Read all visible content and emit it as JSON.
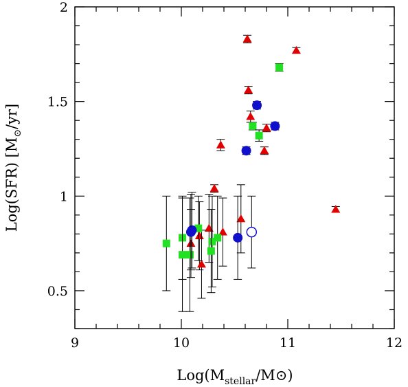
{
  "chart_data": {
    "type": "scatter",
    "xlim": [
      9,
      12
    ],
    "ylim": [
      0.3,
      2
    ],
    "xticks": [
      9,
      10,
      11,
      12
    ],
    "yticks": [
      0.5,
      1,
      1.5,
      2
    ],
    "x_tick_labels": [
      "9",
      "10",
      "11",
      "12"
    ],
    "y_tick_labels": [
      "0.5",
      "1",
      "1.5",
      "2"
    ],
    "xlabel_parts": {
      "prefix": "Log(M",
      "subscript": "stellar",
      "suffix": "/M⊙)"
    },
    "ylabel_parts": {
      "prefix": "Log(SFR)  [M",
      "subscript": "⊙",
      "suffix": "/yr]"
    },
    "grid": false,
    "colors": {
      "red": "#e00000",
      "green": "#22e022",
      "blue": "#1010cc",
      "axis": "#000000"
    },
    "series": [
      {
        "marker": "triangle",
        "color": "#e00000",
        "points": [
          {
            "x": 10.62,
            "y": 1.83,
            "err": 0.02
          },
          {
            "x": 11.08,
            "y": 1.77,
            "err": 0.015
          },
          {
            "x": 10.63,
            "y": 1.56,
            "err": 0.02
          },
          {
            "x": 10.65,
            "y": 1.42,
            "err": 0.03
          },
          {
            "x": 10.8,
            "y": 1.36,
            "err": 0.02
          },
          {
            "x": 10.37,
            "y": 1.27,
            "err": 0.03
          },
          {
            "x": 10.78,
            "y": 1.24,
            "err": 0.02
          },
          {
            "x": 10.31,
            "y": 1.04,
            "err": 0.02
          },
          {
            "x": 11.45,
            "y": 0.93,
            "err": 0.015
          },
          {
            "x": 10.56,
            "y": 0.88,
            "err": 0.18
          },
          {
            "x": 10.26,
            "y": 0.83,
            "err": 0.18
          },
          {
            "x": 10.39,
            "y": 0.81,
            "err": 0.18
          },
          {
            "x": 10.17,
            "y": 0.79,
            "err": 0.18
          },
          {
            "x": 10.09,
            "y": 0.75,
            "err": 0.18
          },
          {
            "x": 10.19,
            "y": 0.64,
            "err": 0.18
          }
        ]
      },
      {
        "marker": "square",
        "color": "#22e022",
        "points": [
          {
            "x": 10.92,
            "y": 1.68,
            "err": 0.02
          },
          {
            "x": 10.67,
            "y": 1.37,
            "err": 0.02
          },
          {
            "x": 10.73,
            "y": 1.32,
            "err": 0.03
          },
          {
            "x": 9.86,
            "y": 0.75,
            "err": 0.25
          },
          {
            "x": 10.01,
            "y": 0.78,
            "err": 0.22
          },
          {
            "x": 10.16,
            "y": 0.83,
            "err": 0.17
          },
          {
            "x": 10.01,
            "y": 0.69,
            "err": 0.3
          },
          {
            "x": 10.08,
            "y": 0.69,
            "err": 0.3
          },
          {
            "x": 10.29,
            "y": 0.76,
            "err": 0.24
          },
          {
            "x": 10.34,
            "y": 0.78,
            "err": 0.22
          },
          {
            "x": 10.28,
            "y": 0.71,
            "err": 0.22
          }
        ]
      },
      {
        "marker": "circle",
        "color": "#1010cc",
        "points": [
          {
            "x": 10.71,
            "y": 1.48,
            "err": 0.02
          },
          {
            "x": 10.88,
            "y": 1.37,
            "err": 0.02
          },
          {
            "x": 10.61,
            "y": 1.24,
            "err": 0.02
          },
          {
            "x": 10.1,
            "y": 0.82,
            "err": 0.2
          },
          {
            "x": 10.09,
            "y": 0.81,
            "err": 0.2
          },
          {
            "x": 10.53,
            "y": 0.78,
            "err": 0.22
          }
        ]
      },
      {
        "marker": "open-circle",
        "color": "#1010cc",
        "points": [
          {
            "x": 10.66,
            "y": 0.81,
            "err": 0.19
          }
        ]
      }
    ]
  }
}
